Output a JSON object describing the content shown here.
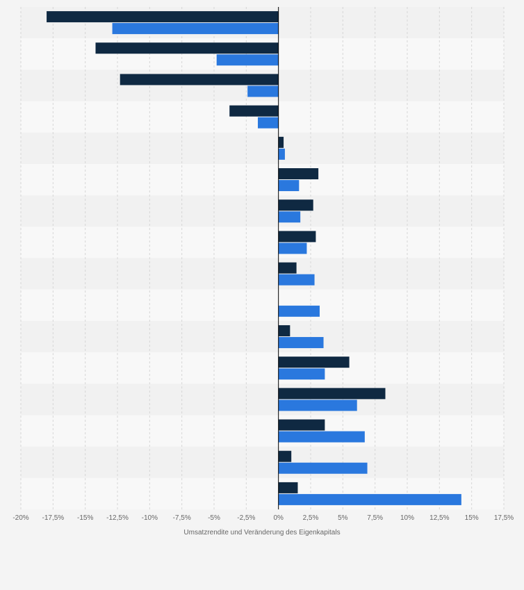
{
  "chart_data": {
    "type": "bar",
    "orientation": "horizontal",
    "title": "",
    "xlabel": "Umsatzrendite und Veränderung des Eigenkapitals",
    "ylabel": "",
    "xlim": [
      -20,
      17.5
    ],
    "grid": true,
    "legend": "none",
    "categories": [
      "",
      "",
      "",
      "",
      "",
      "",
      "",
      "",
      "",
      "",
      "",
      "",
      "",
      "",
      "",
      ""
    ],
    "tick_labels": [
      "-20%",
      "-17,5%",
      "-15%",
      "-12,5%",
      "-10%",
      "-7,5%",
      "-5%",
      "-2,5%",
      "0%",
      "2,5%",
      "5%",
      "7,5%",
      "10%",
      "12,5%",
      "15%",
      "17,5%"
    ],
    "tick_values": [
      -20,
      -17.5,
      -15,
      -12.5,
      -10,
      -7.5,
      -5,
      -2.5,
      0,
      2.5,
      5,
      7.5,
      10,
      12.5,
      15,
      17.5
    ],
    "series": [
      {
        "color": "#0f2942",
        "values": [
          -18.0,
          -14.2,
          -12.3,
          -3.8,
          0.4,
          3.1,
          2.7,
          2.9,
          1.4,
          0.0,
          0.9,
          5.5,
          8.3,
          3.6,
          1.0,
          1.5
        ]
      },
      {
        "color": "#2a78de",
        "values": [
          -12.9,
          -4.8,
          -2.4,
          -1.6,
          0.5,
          1.6,
          1.7,
          2.2,
          2.8,
          3.2,
          3.5,
          3.6,
          6.1,
          6.7,
          6.9,
          14.2
        ]
      }
    ]
  }
}
